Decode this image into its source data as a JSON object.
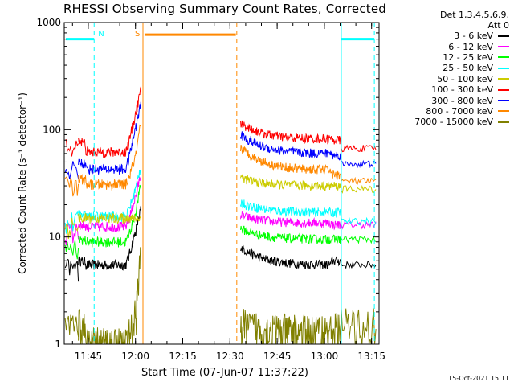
{
  "title": "RHESSI Observing Summary Count Rates, Corrected",
  "legend": {
    "header1": "Det 1,3,4,5,6,9,",
    "header2": "Att 0",
    "entries": [
      {
        "label": "3 - 6 keV",
        "color": "#000000"
      },
      {
        "label": "6 - 12 keV",
        "color": "#ff00ff"
      },
      {
        "label": "12 - 25 keV",
        "color": "#00ff00"
      },
      {
        "label": "25 - 50 keV",
        "color": "#00ffff"
      },
      {
        "label": "50 - 100 keV",
        "color": "#cccc00"
      },
      {
        "label": "100 - 300 keV",
        "color": "#ff0000"
      },
      {
        "label": "300 - 800 keV",
        "color": "#0000ff"
      },
      {
        "label": "800 - 7000 keV",
        "color": "#ff8800"
      },
      {
        "label": "7000 - 15000 keV",
        "color": "#808000"
      }
    ]
  },
  "xlabel": "Start Time (07-Jun-07 11:37:22)",
  "ylabel": "Corrected Count Rate (s⁻¹ detector⁻¹)",
  "timestamp": "15-Oct-2021 15:11",
  "chart_data": {
    "type": "line",
    "title": "RHESSI Observing Summary Count Rates, Corrected",
    "xlabel": "Start Time (07-Jun-07 11:37:22)",
    "ylabel": "Corrected Count Rate (s⁻¹ detector⁻¹)",
    "x_unit": "minutes after 11:37:22",
    "xlim": [
      0,
      100
    ],
    "ylim": [
      1,
      1000
    ],
    "yscale": "log",
    "x_ticks": [
      {
        "t": 7.63,
        "label": "11:45"
      },
      {
        "t": 22.63,
        "label": "12:00"
      },
      {
        "t": 37.63,
        "label": "12:15"
      },
      {
        "t": 52.63,
        "label": "12:30"
      },
      {
        "t": 67.63,
        "label": "12:45"
      },
      {
        "t": 82.63,
        "label": "13:00"
      },
      {
        "t": 97.63,
        "label": "13:15"
      }
    ],
    "y_ticks": [
      1,
      10,
      100,
      1000
    ],
    "markers": [
      {
        "type": "night",
        "label": "N",
        "t": 9.5,
        "color": "#00ffff",
        "style": "dashed"
      },
      {
        "type": "night_end",
        "t": 88.0,
        "color": "#00ffff",
        "style": "solid"
      },
      {
        "type": "night_end2",
        "t": 98.5,
        "color": "#00ffff",
        "style": "dashed"
      },
      {
        "type": "saa",
        "label": "S",
        "t": 25.0,
        "color": "#ff8800",
        "style": "solid"
      },
      {
        "type": "saa_end",
        "t": 54.8,
        "color": "#ff8800",
        "style": "dashed"
      }
    ],
    "bars": [
      {
        "name": "night",
        "color": "#00ffff",
        "t0": 0.5,
        "t1": 9.5,
        "y": 700
      },
      {
        "name": "night",
        "color": "#00ffff",
        "t0": 88.0,
        "t1": 98.5,
        "y": 700
      },
      {
        "name": "saa",
        "color": "#ff8800",
        "t0": 25.5,
        "t1": 54.5,
        "y": 770
      }
    ],
    "segments": [
      {
        "t0": 0,
        "t1": 24.3
      },
      {
        "t0": 56.0,
        "t1": 99.0
      }
    ],
    "series": [
      {
        "name": "3 - 6 keV",
        "color": "#000000",
        "seg1": {
          "start": 6.0,
          "min": 5.5,
          "end": 12.0,
          "tail": 18.0
        },
        "seg2": {
          "start": 8.0,
          "mid": 5.5,
          "end": 6.0,
          "after": 5.5
        }
      },
      {
        "name": "6 - 12 keV",
        "color": "#ff00ff",
        "seg1": {
          "start": 13.0,
          "min": 12.5,
          "end": 25.0,
          "tail": 38.0
        },
        "seg2": {
          "start": 16.0,
          "mid": 13.5,
          "end": 13.0,
          "after": 13.0
        }
      },
      {
        "name": "12 - 25 keV",
        "color": "#00ff00",
        "seg1": {
          "start": 9.5,
          "min": 9.0,
          "end": 18.0,
          "tail": 30.0
        },
        "seg2": {
          "start": 12.0,
          "mid": 9.5,
          "end": 9.5,
          "after": 9.5
        }
      },
      {
        "name": "25 - 50 keV",
        "color": "#00ffff",
        "seg1": {
          "start": 16.0,
          "min": 15.5,
          "end": 30.0,
          "tail": 45.0
        },
        "seg2": {
          "start": 21.0,
          "mid": 17.0,
          "end": 17.0,
          "after": 14.0
        }
      },
      {
        "name": "50 - 100 keV",
        "color": "#cccc00",
        "seg1": {
          "start": 15.0,
          "min": 15.0,
          "end": 15.0,
          "tail": 15.0
        },
        "seg2": {
          "start": 36.0,
          "mid": 30.0,
          "end": 30.0,
          "after": 28.0
        }
      },
      {
        "name": "100 - 300 keV",
        "color": "#ff0000",
        "seg1": {
          "start": 80.0,
          "min": 62.0,
          "end": 150.0,
          "tail": 230.0
        },
        "seg2": {
          "start": 115.0,
          "mid": 82.0,
          "end": 80.0,
          "after": 67.0
        }
      },
      {
        "name": "300 - 800 keV",
        "color": "#0000ff",
        "seg1": {
          "start": 50.0,
          "min": 43.0,
          "end": 110.0,
          "tail": 170.0
        },
        "seg2": {
          "start": 90.0,
          "mid": 60.0,
          "end": 58.0,
          "after": 48.0
        }
      },
      {
        "name": "800 - 7000 keV",
        "color": "#ff8800",
        "seg1": {
          "start": 35.0,
          "min": 31.0,
          "end": 60.0,
          "tail": 110.0
        },
        "seg2": {
          "start": 68.0,
          "mid": 42.0,
          "end": 38.0,
          "after": 33.0
        }
      },
      {
        "name": "7000 - 15000 keV",
        "color": "#808000",
        "seg1": {
          "start": 1.5,
          "min": 1.0,
          "end": 2.0,
          "tail": 8.0
        },
        "seg2": {
          "start": 1.5,
          "mid": 1.3,
          "end": 1.4,
          "after": 1.5
        }
      }
    ]
  }
}
